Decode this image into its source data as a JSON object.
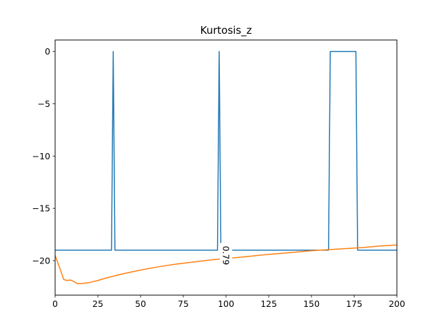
{
  "chart_data": {
    "type": "line",
    "title": "Kurtosis_z",
    "xlabel": "",
    "ylabel": "",
    "xlim": [
      0,
      200
    ],
    "ylim": [
      -23.3,
      1.1
    ],
    "xticks": [
      0,
      25,
      50,
      75,
      100,
      125,
      150,
      175,
      200
    ],
    "yticks": [
      0,
      -5,
      -10,
      -15,
      -20
    ],
    "ytick_labels": [
      "0",
      "−5",
      "−10",
      "−15",
      "−20"
    ],
    "grid": false,
    "series": [
      {
        "color": "#1f77b4",
        "x": [
          0,
          33,
          34,
          35,
          95,
          96,
          97,
          160,
          161,
          176,
          177,
          200
        ],
        "y": [
          -19,
          -19,
          0,
          -19,
          -19,
          0,
          -19,
          -19,
          0,
          0,
          -19,
          -19
        ]
      },
      {
        "color": "#ff7f0e",
        "x": [
          0,
          2,
          4,
          5,
          7,
          9,
          11,
          13,
          15,
          20,
          25,
          30,
          40,
          50,
          60,
          70,
          80,
          90,
          100,
          110,
          125,
          140,
          150,
          160,
          170,
          180,
          190,
          200
        ],
        "y": [
          -19.5,
          -20.4,
          -21.3,
          -21.8,
          -21.9,
          -21.85,
          -22.0,
          -22.2,
          -22.2,
          -22.1,
          -21.9,
          -21.65,
          -21.25,
          -20.9,
          -20.6,
          -20.35,
          -20.15,
          -19.95,
          -19.8,
          -19.65,
          -19.4,
          -19.2,
          -19.05,
          -18.95,
          -18.85,
          -18.75,
          -18.6,
          -18.5
        ]
      }
    ],
    "annotations": [
      {
        "text": "0.79",
        "x": 100,
        "y": -19.5,
        "rotation": 90
      }
    ]
  }
}
